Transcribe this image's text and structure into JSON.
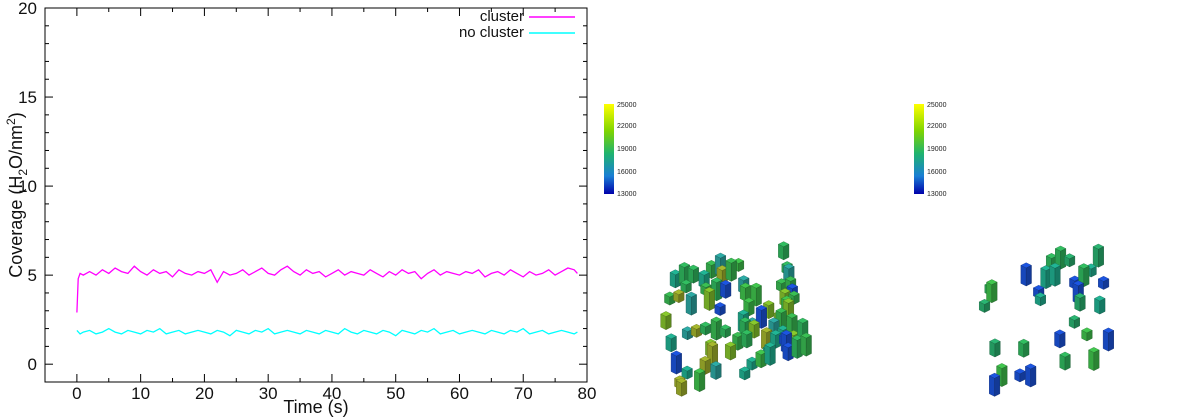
{
  "chart_data": [
    {
      "type": "line",
      "xlabel": "Time (s)",
      "ylabel_parts": [
        "Coverage (H",
        "2",
        "O/nm",
        "2",
        ")"
      ],
      "xlim": [
        -5,
        80
      ],
      "ylim": [
        -1,
        20
      ],
      "xticks": [
        "0",
        "10",
        "20",
        "30",
        "40",
        "50",
        "60",
        "70",
        "80"
      ],
      "yticks": [
        "0",
        "5",
        "10",
        "15",
        "20"
      ],
      "legend_position": "top-right",
      "series": [
        {
          "name": "cluster",
          "color": "#ff00ff",
          "x": [
            0,
            0.2,
            0.5,
            1,
            2,
            3,
            4,
            5,
            6,
            7,
            8,
            9,
            10,
            11,
            12,
            13,
            14,
            15,
            16,
            17,
            18,
            19,
            20,
            21,
            22,
            23,
            24,
            25,
            26,
            27,
            28,
            29,
            30,
            31,
            32,
            33,
            34,
            35,
            36,
            37,
            38,
            39,
            40,
            41,
            42,
            43,
            44,
            45,
            46,
            47,
            48,
            49,
            50,
            51,
            52,
            53,
            54,
            55,
            56,
            57,
            58,
            59,
            60,
            61,
            62,
            63,
            64,
            65,
            66,
            67,
            68,
            69,
            70,
            71,
            72,
            73,
            74,
            75,
            76,
            77,
            78,
            78.5
          ],
          "y": [
            2.9,
            4.8,
            5.1,
            5.0,
            5.2,
            5.0,
            5.3,
            5.1,
            5.4,
            5.2,
            5.1,
            5.5,
            5.2,
            5.0,
            5.3,
            5.1,
            5.2,
            4.9,
            5.3,
            5.1,
            5.0,
            5.2,
            5.1,
            5.3,
            4.6,
            5.2,
            5.0,
            5.1,
            5.3,
            5.0,
            5.2,
            5.4,
            5.1,
            5.0,
            5.3,
            5.5,
            5.2,
            5.0,
            5.3,
            5.1,
            5.2,
            4.9,
            5.1,
            5.3,
            5.0,
            5.2,
            5.1,
            5.0,
            5.3,
            5.1,
            4.9,
            5.2,
            5.0,
            5.3,
            5.1,
            5.2,
            4.8,
            5.1,
            5.3,
            5.0,
            5.2,
            5.1,
            5.0,
            5.2,
            5.1,
            5.3,
            4.9,
            5.1,
            5.2,
            5.0,
            5.3,
            5.1,
            4.9,
            5.2,
            5.0,
            5.1,
            5.3,
            5.0,
            5.2,
            5.4,
            5.3,
            5.1
          ]
        },
        {
          "name": "no cluster",
          "color": "#00ffff",
          "x": [
            0,
            0.5,
            1,
            2,
            3,
            4,
            5,
            6,
            7,
            8,
            9,
            10,
            11,
            12,
            13,
            14,
            15,
            16,
            17,
            18,
            19,
            20,
            21,
            22,
            23,
            24,
            25,
            26,
            27,
            28,
            29,
            30,
            31,
            32,
            33,
            34,
            35,
            36,
            37,
            38,
            39,
            40,
            41,
            42,
            43,
            44,
            45,
            46,
            47,
            48,
            49,
            50,
            51,
            52,
            53,
            54,
            55,
            56,
            57,
            58,
            59,
            60,
            61,
            62,
            63,
            64,
            65,
            66,
            67,
            68,
            69,
            70,
            71,
            72,
            73,
            74,
            75,
            76,
            77,
            78,
            78.5
          ],
          "y": [
            1.9,
            1.7,
            1.8,
            1.9,
            1.7,
            1.8,
            2.0,
            1.8,
            1.7,
            1.9,
            1.8,
            1.7,
            1.9,
            1.8,
            2.0,
            1.7,
            1.8,
            1.9,
            1.7,
            1.8,
            1.9,
            1.8,
            1.7,
            1.9,
            1.8,
            1.6,
            1.9,
            1.8,
            1.7,
            1.9,
            1.8,
            2.0,
            1.7,
            1.8,
            1.9,
            1.8,
            1.7,
            1.9,
            1.8,
            1.7,
            1.9,
            1.8,
            1.7,
            2.0,
            1.8,
            1.7,
            1.9,
            1.8,
            1.7,
            1.9,
            1.8,
            1.6,
            1.9,
            1.8,
            1.7,
            1.9,
            1.8,
            2.0,
            1.7,
            1.8,
            1.9,
            1.7,
            1.8,
            1.9,
            1.8,
            1.7,
            1.9,
            1.8,
            1.7,
            1.9,
            1.8,
            2.0,
            1.7,
            1.8,
            1.9,
            1.7,
            1.8,
            1.9,
            1.8,
            1.7,
            1.8
          ]
        }
      ]
    },
    {
      "type": "3d-bar",
      "panel": "left",
      "colorbar": {
        "ticks": [
          "25000",
          "22000",
          "19000",
          "16000",
          "13000"
        ],
        "colors": [
          "#ffff00",
          "#7fd400",
          "#1fb36e",
          "#1a7fd4",
          "#0000aa"
        ]
      }
    },
    {
      "type": "3d-bar",
      "panel": "right",
      "colorbar": {
        "ticks": [
          "25000",
          "22000",
          "19000",
          "16000",
          "13000"
        ],
        "colors": [
          "#ffff00",
          "#7fd400",
          "#1fb36e",
          "#1a7fd4",
          "#0000aa"
        ]
      }
    }
  ]
}
